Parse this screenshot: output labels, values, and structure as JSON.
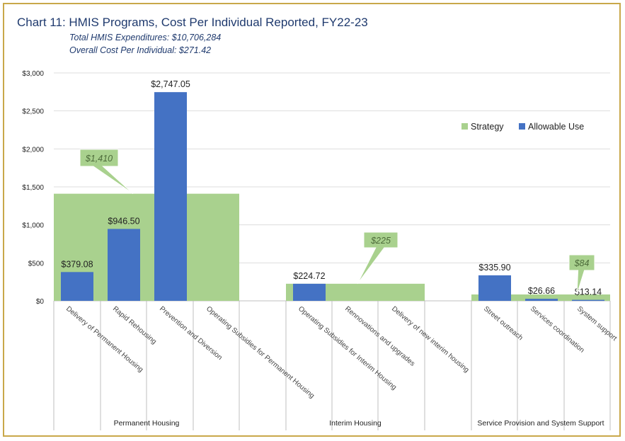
{
  "chart_data": {
    "type": "bar",
    "title": "Chart 11: HMIS Programs, Cost Per Individual Reported, FY22-23",
    "subtitle_lines": [
      "Total HMIS Expenditures: $10,706,284",
      "Overall Cost Per Individual: $271.42"
    ],
    "ylim": [
      0,
      3000
    ],
    "yticks": [
      0,
      500,
      1000,
      1500,
      2000,
      2500,
      3000
    ],
    "ytick_labels": [
      "$0",
      "$500",
      "$1,000",
      "$1,500",
      "$2,000",
      "$2,500",
      "$3,000"
    ],
    "gridlines": true,
    "legend": {
      "placement": "right",
      "entries": [
        {
          "name": "Strategy",
          "color": "#a9d18e"
        },
        {
          "name": "Allowable Use",
          "color": "#4472c4"
        }
      ]
    },
    "groups": [
      {
        "name": "Permanent Housing",
        "strategy_value": 1410,
        "strategy_label": "$1,410",
        "categories": [
          {
            "name": "Delivery of Permanent Housing",
            "value": 379.08,
            "label": "$379.08"
          },
          {
            "name": "Rapid Rehousing",
            "value": 946.5,
            "label": "$946.50"
          },
          {
            "name": "Prevention and Diversion",
            "value": 2747.05,
            "label": "$2,747.05"
          },
          {
            "name": "Operating Subsidies for Permanent Housing",
            "value": null,
            "label": ""
          }
        ]
      },
      {
        "name": "Interim Housing",
        "strategy_value": 225,
        "strategy_label": "$225",
        "categories": [
          {
            "name": "Operating Subsidies for Interim Housing",
            "value": 224.72,
            "label": "$224.72"
          },
          {
            "name": "Rennovations and upgrades",
            "value": null,
            "label": ""
          },
          {
            "name": "Delivery of new interim housing",
            "value": null,
            "label": ""
          }
        ]
      },
      {
        "name": "Service Provision and System Support",
        "strategy_value": 84,
        "strategy_label": "$84",
        "categories": [
          {
            "name": "Street outreach",
            "value": 335.9,
            "label": "$335.90"
          },
          {
            "name": "Services coordination",
            "value": 26.66,
            "label": "$26.66"
          },
          {
            "name": "System support",
            "value": 13.14,
            "label": "$13.14"
          }
        ]
      }
    ],
    "colors": {
      "strategy": "#a9d18e",
      "allowable": "#4472c4",
      "callout": "#a9d18e",
      "callout_text": "#4d6b3a",
      "text": "#222222",
      "grid": "#dddddd",
      "axis": "#bfbfbf"
    }
  }
}
